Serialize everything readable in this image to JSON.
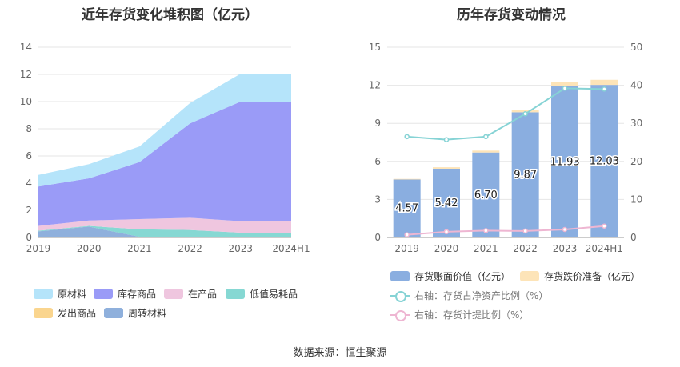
{
  "source": "数据来源：恒生聚源",
  "chart_data": [
    {
      "type": "area",
      "stacked": true,
      "title": "近年存货变化堆积图（亿元）",
      "categories": [
        "2019",
        "2020",
        "2021",
        "2022",
        "2023",
        "2024H1"
      ],
      "ylim": [
        0,
        14
      ],
      "yticks": [
        0,
        2,
        4,
        6,
        8,
        10,
        12,
        14
      ],
      "legend_position": "bottom",
      "series": [
        {
          "name": "周转材料",
          "color": "#8fb0dc",
          "values": [
            0.45,
            0.8,
            0.05,
            0.05,
            0.05,
            0.05
          ]
        },
        {
          "name": "发出商品",
          "color": "#fad58e",
          "values": [
            0,
            0,
            0,
            0,
            0,
            0
          ]
        },
        {
          "name": "低值易耗品",
          "color": "#86d8d3",
          "values": [
            0.05,
            0.05,
            0.55,
            0.5,
            0.3,
            0.3
          ]
        },
        {
          "name": "在产品",
          "color": "#efc6df",
          "values": [
            0.35,
            0.4,
            0.75,
            0.9,
            0.85,
            0.85
          ]
        },
        {
          "name": "库存商品",
          "color": "#9a9bf7",
          "values": [
            2.9,
            3.1,
            4.2,
            6.95,
            8.8,
            8.8
          ]
        },
        {
          "name": "原材料",
          "color": "#b5e4fa",
          "values": [
            0.85,
            1.05,
            1.15,
            1.5,
            2.05,
            2.05
          ]
        }
      ],
      "legend_order": [
        "原材料",
        "库存商品",
        "在产品",
        "低值易耗品",
        "发出商品",
        "周转材料"
      ]
    },
    {
      "type": "bar",
      "title": "历年存货变动情况",
      "categories": [
        "2019",
        "2020",
        "2021",
        "2022",
        "2023",
        "2024H1"
      ],
      "ylim": [
        0,
        15
      ],
      "yticks": [
        0,
        3,
        6,
        9,
        12,
        15
      ],
      "y2lim": [
        0,
        50
      ],
      "y2ticks": [
        0,
        10,
        20,
        30,
        40,
        50
      ],
      "legend_position": "bottom",
      "series": [
        {
          "name": "存货账面价值（亿元）",
          "kind": "bar",
          "axis": "left",
          "color": "#8aaee0",
          "values": [
            4.57,
            5.42,
            6.7,
            9.87,
            11.93,
            12.03
          ],
          "labels": [
            "4.57",
            "5.42",
            "6.70",
            "9.87",
            "11.93",
            "12.03"
          ]
        },
        {
          "name": "存货跌价准备（亿元）",
          "kind": "bar",
          "axis": "left",
          "color": "#fde4b8",
          "values": [
            0.05,
            0.12,
            0.15,
            0.2,
            0.3,
            0.4
          ]
        },
        {
          "name": "右轴：存货占净资产比例（%）",
          "kind": "line",
          "axis": "right",
          "color": "#86d3d5",
          "values": [
            26.5,
            25.7,
            26.5,
            32.5,
            39.2,
            39.0
          ]
        },
        {
          "name": "右轴：存货计提比例（%）",
          "kind": "line",
          "axis": "right",
          "color": "#eeb6d2",
          "values": [
            0.7,
            1.5,
            1.8,
            1.7,
            2.1,
            3.0
          ]
        }
      ]
    }
  ]
}
